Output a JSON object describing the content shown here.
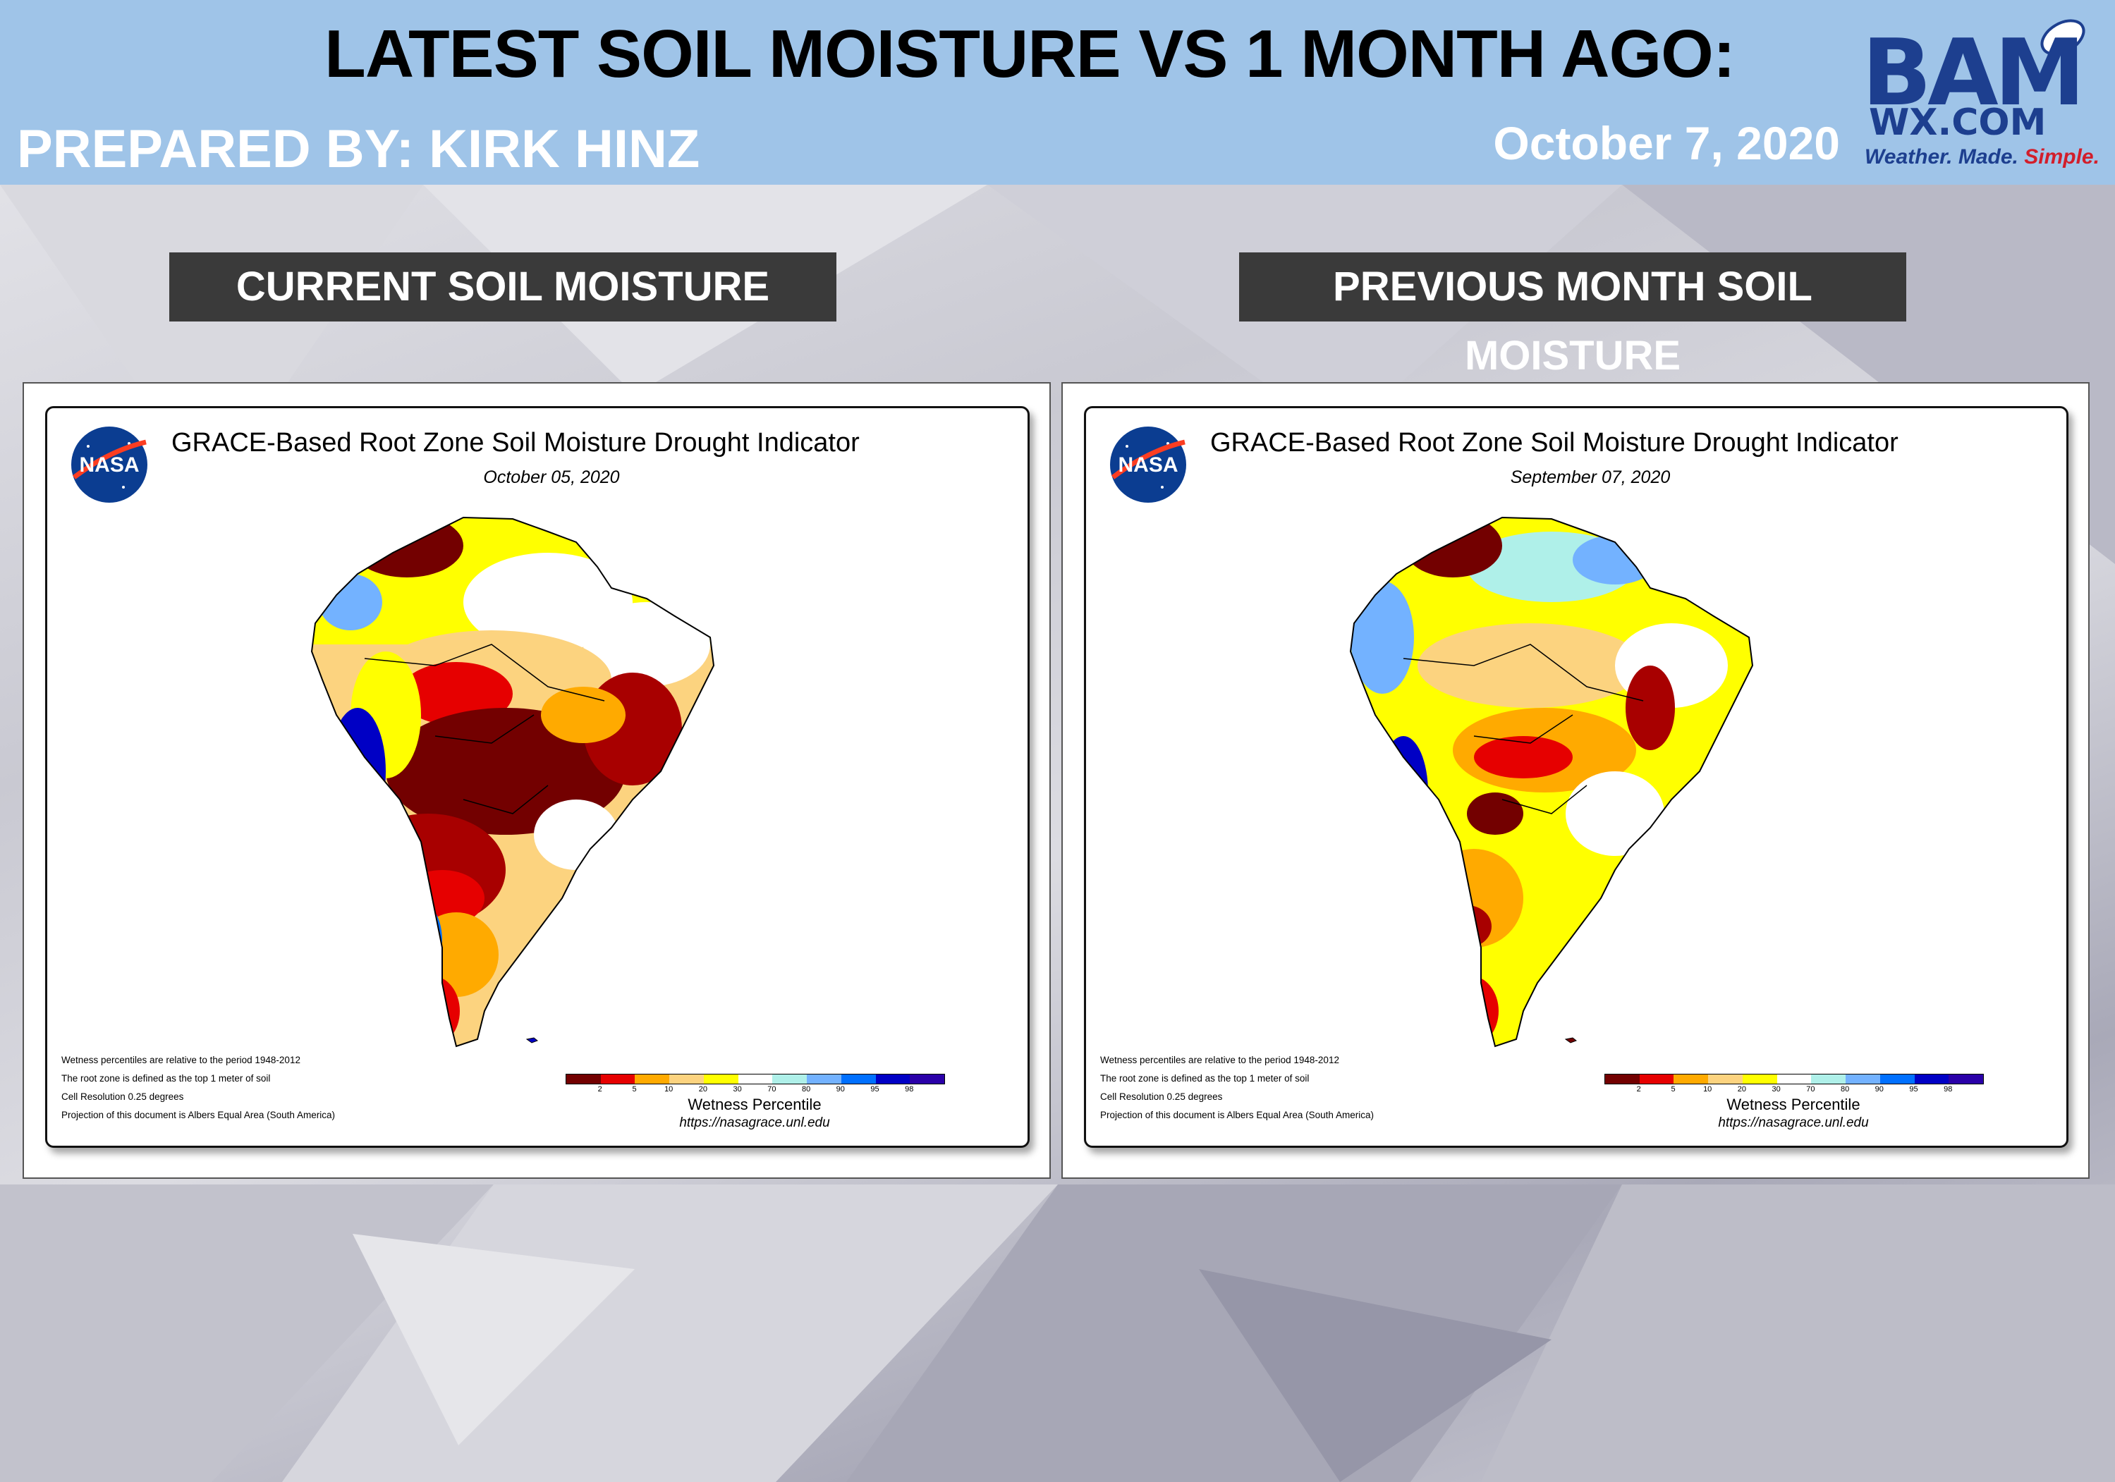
{
  "header": {
    "title": "LATEST SOIL MOISTURE VS 1 MONTH AGO:",
    "prepared_by": "PREPARED BY: KIRK HINZ",
    "date": "October 7, 2020",
    "background_color": "#9fc4e8"
  },
  "logo": {
    "main": "BAM",
    "domain": "WX.COM",
    "tagline_1": "Weather.",
    "tagline_2": "Made.",
    "tagline_3": "Simple."
  },
  "panels": [
    {
      "label": "CURRENT SOIL MOISTURE",
      "map_title": "GRACE-Based Root Zone Soil Moisture Drought Indicator",
      "map_date": "October 05, 2020",
      "nasa_text": "NASA"
    },
    {
      "label": "PREVIOUS MONTH SOIL MOISTURE",
      "map_title": "GRACE-Based Root Zone Soil Moisture Drought Indicator",
      "map_date": "September 07, 2020",
      "nasa_text": "NASA"
    }
  ],
  "notes": [
    "Wetness percentiles are relative to the period 1948-2012",
    "The root zone is defined as the top 1 meter of soil",
    "Cell Resolution 0.25 degrees",
    "Projection of this document is Albers Equal Area (South America)"
  ],
  "legend": {
    "title": "Wetness Percentile",
    "url": "https://nasagrace.unl.edu",
    "ticks": [
      "2",
      "5",
      "10",
      "20",
      "30",
      "70",
      "80",
      "90",
      "95",
      "98"
    ],
    "colors": [
      "#730000",
      "#e60000",
      "#ffaa00",
      "#fcd37f",
      "#ffff00",
      "#ffffff",
      "#aff0e9",
      "#73b2ff",
      "#0070ff",
      "#0000c5",
      "#2a00a8"
    ]
  }
}
